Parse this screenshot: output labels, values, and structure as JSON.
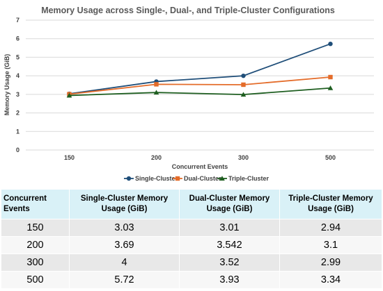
{
  "chart_data": {
    "type": "line",
    "title": "Memory Usage across Single-, Dual-, and Triple-Cluster Configurations",
    "xlabel": "Concurrent Events",
    "ylabel": "Memory Usage (GiB)",
    "categories": [
      "150",
      "200",
      "300",
      "500"
    ],
    "ylim": [
      0,
      7
    ],
    "yticks": [
      "0",
      "1",
      "2",
      "3",
      "4",
      "5",
      "6",
      "7"
    ],
    "grid": true,
    "legend_position": "bottom",
    "series": [
      {
        "name": "Single-Cluster",
        "values": [
          3.03,
          3.69,
          4,
          5.72
        ],
        "color": "#1f4e79",
        "marker": "circle"
      },
      {
        "name": "Dual-Cluster",
        "values": [
          3.01,
          3.542,
          3.52,
          3.93
        ],
        "color": "#e46c2a",
        "marker": "square"
      },
      {
        "name": "Triple-Cluster",
        "values": [
          2.94,
          3.1,
          2.99,
          3.34
        ],
        "color": "#1e5e20",
        "marker": "triangle"
      }
    ]
  },
  "table": {
    "headers": [
      "Concurrent Events",
      "Single-Cluster Memory Usage (GiB)",
      "Dual-Cluster Memory Usage (GiB)",
      "Triple-Cluster Memory Usage (GiB)"
    ],
    "rows": [
      [
        "150",
        "3.03",
        "3.01",
        "2.94"
      ],
      [
        "200",
        "3.69",
        "3.542",
        "3.1"
      ],
      [
        "300",
        "4",
        "3.52",
        "2.99"
      ],
      [
        "500",
        "5.72",
        "3.93",
        "3.34"
      ]
    ]
  },
  "colors": {
    "header_bg": "#d9f1f7",
    "row_odd_bg": "#e8e8e8",
    "row_even_bg": "#f7f7f7",
    "gridline": "#d9d9d9"
  }
}
